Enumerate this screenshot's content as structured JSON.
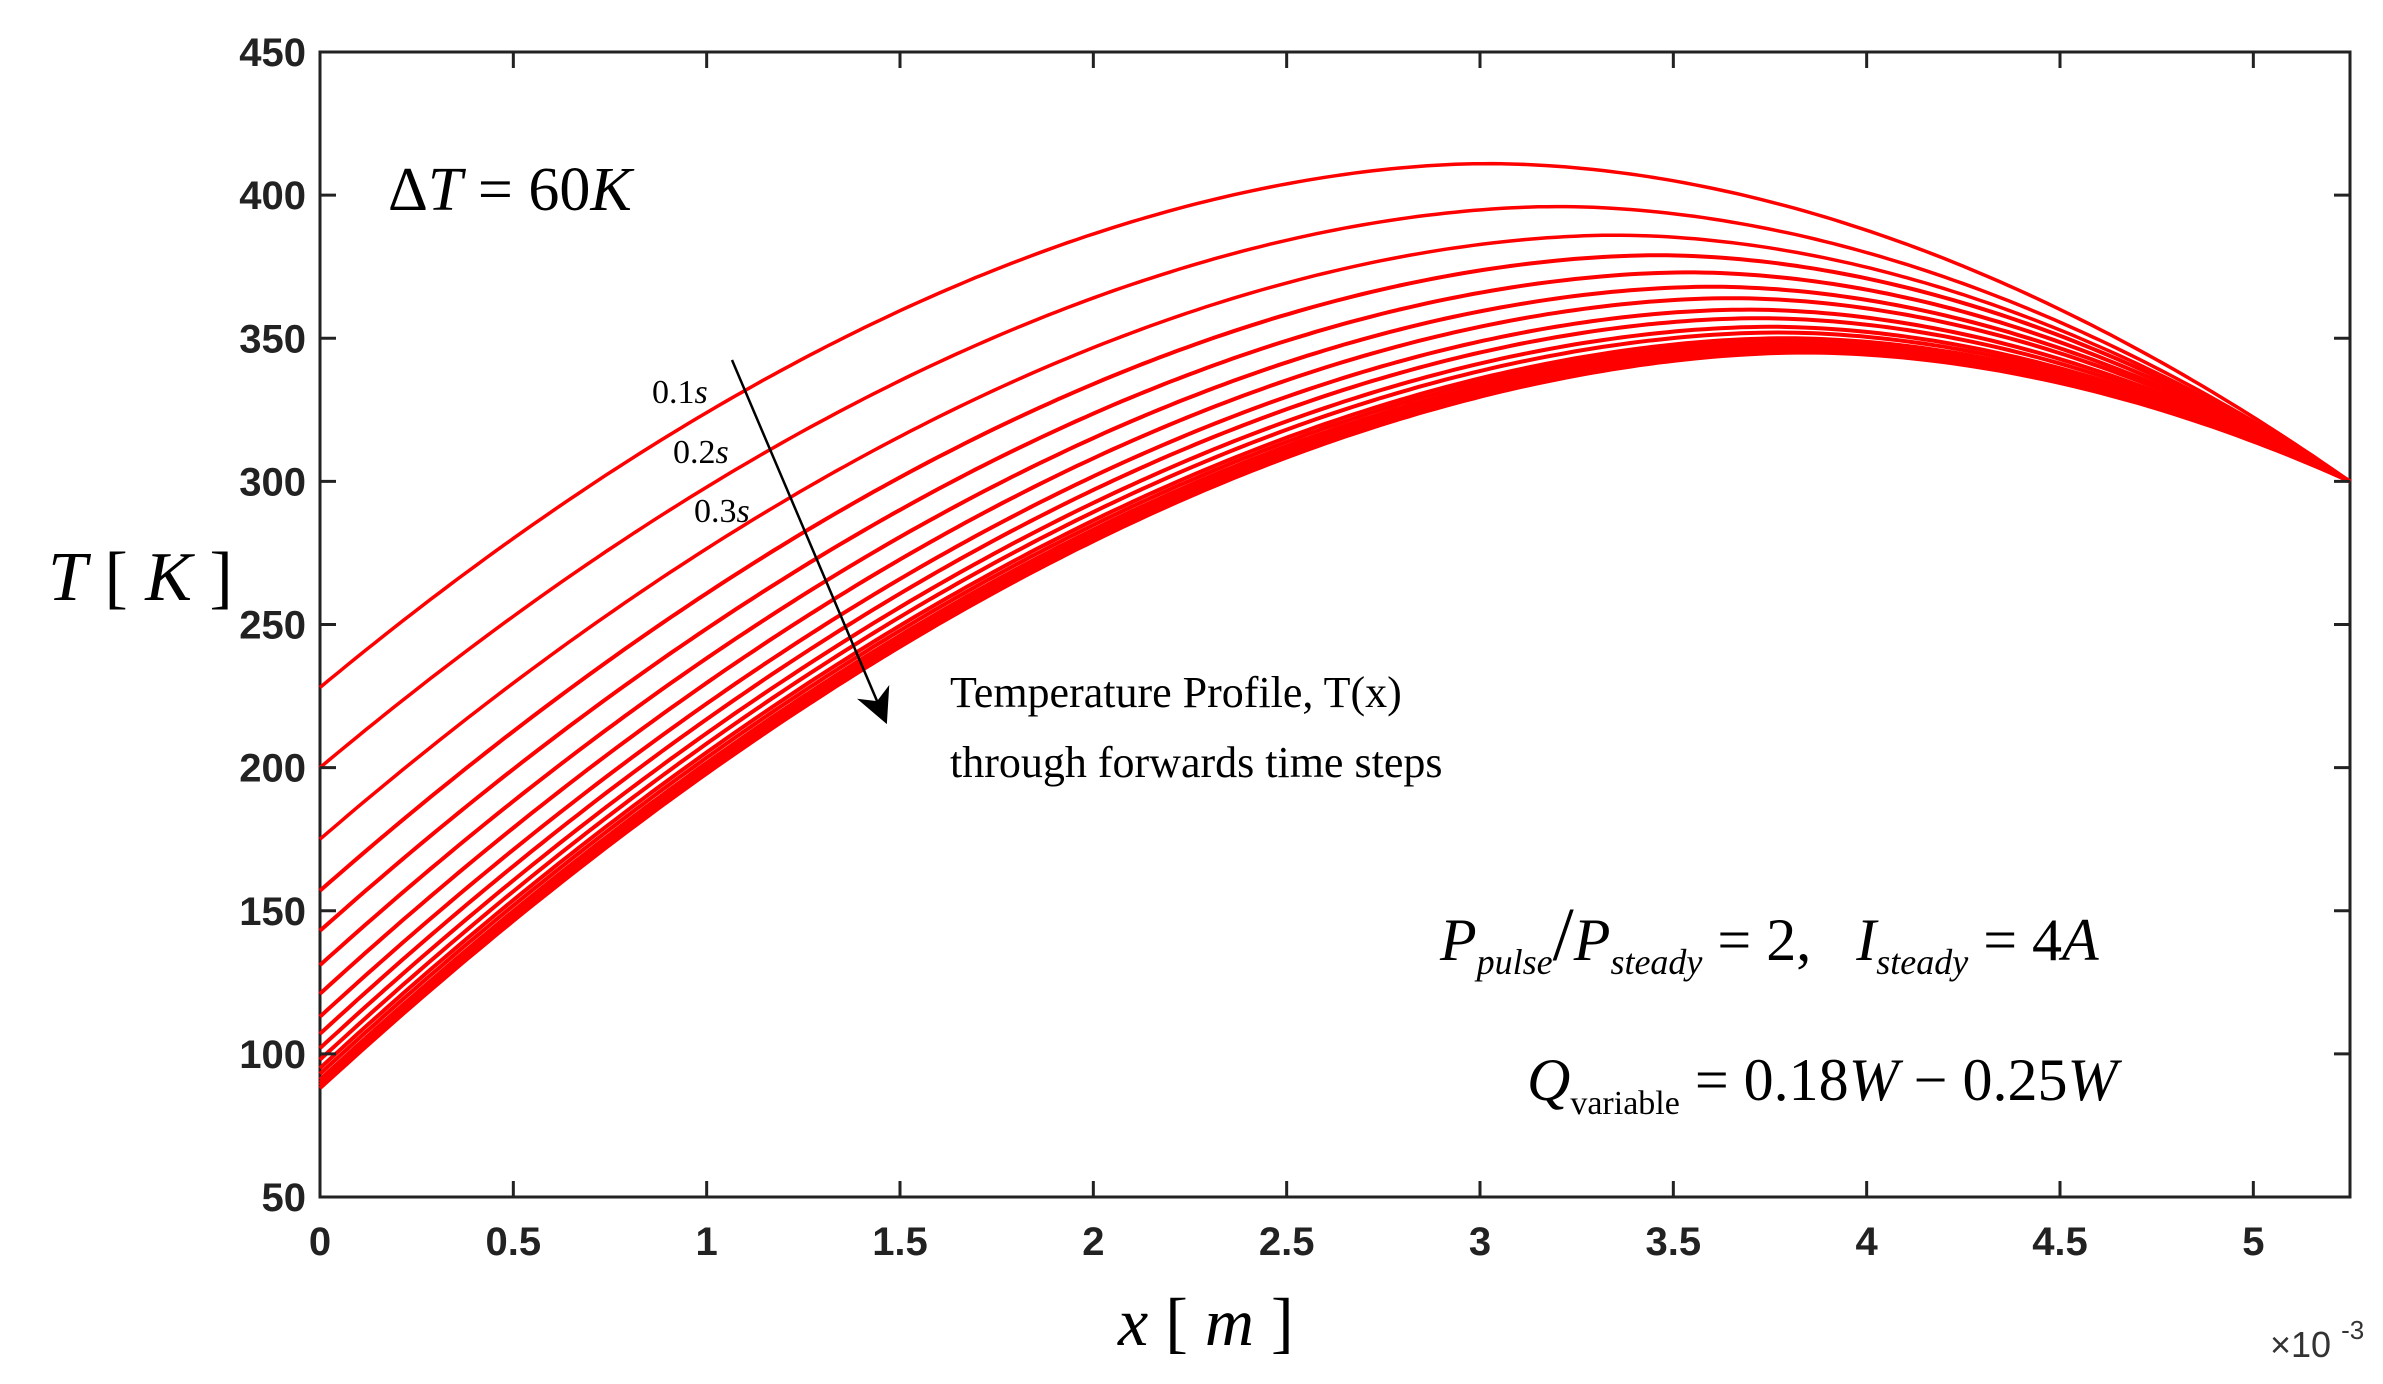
{
  "chart_data": {
    "type": "line",
    "title": "",
    "xlabel": {
      "var": "x",
      "unit": "m"
    },
    "ylabel": {
      "var": "T",
      "unit": "K"
    },
    "xlim": [
      0,
      0.00525
    ],
    "ylim": [
      50,
      450
    ],
    "x_multiplier_label": "×10",
    "x_multiplier_exponent": "-3",
    "xticks": [
      "0",
      "0.5",
      "1",
      "1.5",
      "2",
      "2.5",
      "3",
      "3.5",
      "4",
      "4.5",
      "5"
    ],
    "xtick_values": [
      0,
      0.0005,
      0.001,
      0.0015,
      0.002,
      0.0025,
      0.003,
      0.0035,
      0.004,
      0.0045,
      0.005
    ],
    "yticks": [
      "50",
      "100",
      "150",
      "200",
      "250",
      "300",
      "350",
      "400",
      "450"
    ],
    "ytick_values": [
      50,
      100,
      150,
      200,
      250,
      300,
      350,
      400,
      450
    ],
    "grid": false,
    "line_color": "#ff0000",
    "series_description": "Temperature profiles at successive time steps; all end at 300 K at x = 5.25e-3 m",
    "series": [
      {
        "name": "t1",
        "T0": 228,
        "x_peak": 0.00302,
        "T_peak": 411
      },
      {
        "name": "t2",
        "T0": 200,
        "x_peak": 0.0032,
        "T_peak": 396
      },
      {
        "name": "t3",
        "T0": 175,
        "x_peak": 0.00335,
        "T_peak": 386
      },
      {
        "name": "t4",
        "T0": 157,
        "x_peak": 0.00346,
        "T_peak": 379
      },
      {
        "name": "t5",
        "T0": 143,
        "x_peak": 0.00354,
        "T_peak": 373
      },
      {
        "name": "t6",
        "T0": 131,
        "x_peak": 0.0036,
        "T_peak": 368
      },
      {
        "name": "t7",
        "T0": 121,
        "x_peak": 0.00365,
        "T_peak": 364
      },
      {
        "name": "t8",
        "T0": 113,
        "x_peak": 0.00369,
        "T_peak": 360
      },
      {
        "name": "t9",
        "T0": 107,
        "x_peak": 0.00372,
        "T_peak": 357
      },
      {
        "name": "t10",
        "T0": 102,
        "x_peak": 0.00375,
        "T_peak": 354
      },
      {
        "name": "t11",
        "T0": 98,
        "x_peak": 0.00377,
        "T_peak": 352
      },
      {
        "name": "t12",
        "T0": 95,
        "x_peak": 0.00379,
        "T_peak": 350
      },
      {
        "name": "t13",
        "T0": 93,
        "x_peak": 0.0038,
        "T_peak": 349
      },
      {
        "name": "t14",
        "T0": 91,
        "x_peak": 0.00381,
        "T_peak": 348
      },
      {
        "name": "t15",
        "T0": 90,
        "x_peak": 0.00382,
        "T_peak": 347
      },
      {
        "name": "t16",
        "T0": 89,
        "x_peak": 0.00383,
        "T_peak": 346
      },
      {
        "name": "t17",
        "T0": 88,
        "x_peak": 0.00384,
        "T_peak": 345
      }
    ],
    "end_point": {
      "x": 0.00525,
      "T": 300
    },
    "annotations": {
      "delta_t": {
        "prefix": "Δ",
        "var": "T",
        "eq": " = 60",
        "unit": "K"
      },
      "time_labels": [
        {
          "num": "0.1",
          "unit": "s"
        },
        {
          "num": "0.2",
          "unit": "s"
        },
        {
          "num": "0.3",
          "unit": "s"
        }
      ],
      "arrow_text_line1": "Temperature Profile, T(x)",
      "arrow_text_line2": "through forwards time steps",
      "ratio_eq": {
        "p": "P",
        "p_pulse_sub": "pulse",
        "slash": "/",
        "p_steady_sub": "steady",
        "eq1": " = 2,",
        "i": "I",
        "i_sub": "steady",
        "eq2": " = 4",
        "amp": "A"
      },
      "q_eq": {
        "q": "Q",
        "q_sub": "variable",
        "eq": " = 0.18",
        "w1": "W",
        "minus": " − 0.25",
        "w2": "W"
      }
    }
  }
}
